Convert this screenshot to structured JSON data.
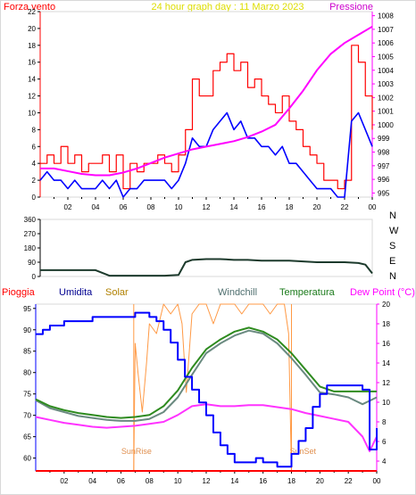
{
  "colors": {
    "background": "#ffffff",
    "frame": "#d8d8d8",
    "axis": "#000000",
    "wind_gust": "#ff0000",
    "wind_avg": "#0000ff",
    "pressure": "#ff00ff",
    "direction": "#1c3a2c",
    "rain": "#ff0000",
    "humidity": "#0000ff",
    "solar": "#ff9944",
    "windchill": "#6a8a80",
    "temperature": "#2e8b1f",
    "dew_point": "#ff33ff",
    "title": "#dddd00",
    "axis_label_top_left": "#ff0000",
    "axis_label_top_right": "#cc00cc",
    "legend_pioggia": "#ff0000",
    "legend_umidita": "#000090",
    "legend_solar": "#b08000",
    "legend_windchill": "#507070",
    "legend_temperatura": "#1a7a1a",
    "legend_dewpoint": "#ff00ff",
    "sunrise_label": "#e09050"
  },
  "chart_data": [
    {
      "type": "line",
      "title": "24 hour graph day : 11 Marzo 2023",
      "ylabel_left": "Forza vento",
      "ylabel_right": "Pressione",
      "xticks": [
        "02",
        "04",
        "06",
        "08",
        "10",
        "12",
        "14",
        "16",
        "18",
        "20",
        "22",
        "00"
      ],
      "yticks_left": [
        "0",
        "2",
        "4",
        "6",
        "8",
        "10",
        "12",
        "14",
        "16",
        "18",
        "20",
        "22"
      ],
      "yticks_right": [
        "995",
        "996",
        "997",
        "998",
        "999",
        "1000",
        "1001",
        "1002",
        "1003",
        "1004",
        "1005",
        "1006",
        "1007",
        "1008"
      ],
      "ylim_left": [
        0,
        22
      ],
      "ylim_right": [
        994.7,
        1008.3
      ],
      "series": [
        {
          "key": "gust",
          "color_key": "wind_gust",
          "x": [
            0,
            0.5,
            1,
            1.5,
            2,
            2.5,
            3,
            3.5,
            4,
            4.5,
            5,
            5.5,
            6,
            6.5,
            7,
            7.5,
            8,
            8.5,
            9,
            9.5,
            10,
            10.5,
            11,
            11.5,
            12,
            12.5,
            13,
            13.5,
            14,
            14.5,
            15,
            15.5,
            16,
            16.5,
            17,
            17.5,
            18,
            18.5,
            19,
            19.5,
            20,
            20.5,
            21,
            21.5,
            22,
            22.5,
            23,
            23.5,
            24
          ],
          "values": [
            4,
            5,
            4,
            6,
            4,
            5,
            3,
            4,
            4,
            5,
            3,
            5,
            1,
            4,
            3,
            4,
            4,
            5,
            4,
            3,
            5,
            8,
            14,
            12,
            12,
            15,
            16,
            17,
            15,
            16,
            13,
            14,
            12,
            11,
            10,
            12,
            9,
            8,
            6,
            5,
            4,
            2,
            2,
            1,
            2,
            18,
            16,
            12,
            8
          ]
        },
        {
          "key": "avg",
          "color_key": "wind_avg",
          "x": [
            0,
            0.5,
            1,
            1.5,
            2,
            2.5,
            3,
            3.5,
            4,
            4.5,
            5,
            5.5,
            6,
            6.5,
            7,
            7.5,
            8,
            8.5,
            9,
            9.5,
            10,
            10.5,
            11,
            11.5,
            12,
            12.5,
            13,
            13.5,
            14,
            14.5,
            15,
            15.5,
            16,
            16.5,
            17,
            17.5,
            18,
            18.5,
            19,
            19.5,
            20,
            20.5,
            21,
            21.5,
            22,
            22.5,
            23,
            23.5,
            24
          ],
          "values": [
            2,
            3,
            2,
            2,
            1,
            2,
            1,
            1,
            1,
            2,
            1,
            2,
            0,
            1,
            1,
            2,
            2,
            2,
            2,
            1,
            2,
            4,
            7,
            6,
            6,
            8,
            9,
            10,
            8,
            9,
            7,
            7,
            6,
            6,
            5,
            6,
            4,
            4,
            3,
            2,
            1,
            1,
            1,
            0,
            0,
            9,
            10,
            8,
            6
          ]
        },
        {
          "key": "pressure",
          "color_key": "pressure",
          "axis": "right",
          "x": [
            0,
            1,
            2,
            3,
            4,
            5,
            6,
            7,
            8,
            9,
            10,
            11,
            12,
            13,
            14,
            15,
            16,
            17,
            18,
            19,
            20,
            21,
            22,
            23,
            24
          ],
          "values": [
            996.8,
            996.8,
            996.6,
            996.4,
            996.3,
            996.3,
            996.5,
            996.8,
            997.2,
            997.6,
            997.9,
            998.2,
            998.4,
            998.6,
            998.8,
            999.1,
            999.5,
            1000.0,
            1001.2,
            1002.5,
            1004.0,
            1005.2,
            1006.0,
            1006.6,
            1007.2
          ]
        }
      ]
    },
    {
      "type": "line",
      "yticks_left": [
        "0",
        "90",
        "180",
        "270",
        "360"
      ],
      "ylim": [
        0,
        360
      ],
      "yticks_right": [
        "N",
        "W",
        "S",
        "E",
        "N"
      ],
      "series": [
        {
          "key": "direction",
          "color_key": "direction",
          "x": [
            0,
            1,
            2,
            3,
            4,
            5,
            6,
            7,
            8,
            9,
            10,
            10.5,
            11,
            12,
            13,
            14,
            15,
            16,
            17,
            18,
            19,
            20,
            21,
            22,
            23,
            23.5,
            24
          ],
          "values": [
            40,
            40,
            40,
            40,
            40,
            5,
            5,
            5,
            5,
            5,
            10,
            90,
            105,
            110,
            110,
            105,
            105,
            100,
            100,
            100,
            95,
            90,
            90,
            90,
            85,
            75,
            20
          ]
        }
      ]
    },
    {
      "type": "line",
      "xticks": [
        "02",
        "04",
        "06",
        "08",
        "10",
        "12",
        "14",
        "16",
        "18",
        "20",
        "22",
        "00"
      ],
      "yticks_left": [
        "60",
        "65",
        "70",
        "75",
        "80",
        "85",
        "90",
        "95"
      ],
      "ylim_left": [
        57,
        96
      ],
      "yticks_right": [
        "4",
        "6",
        "8",
        "10",
        "12",
        "14",
        "16",
        "18",
        "20"
      ],
      "ylim_right": [
        3,
        20
      ],
      "legend": [
        "Pioggia",
        "Umidita",
        "Solar",
        "Windchill",
        "Temperatura",
        "Dew Point (°C)"
      ],
      "annotations": [
        "SunRise",
        "SunSet"
      ],
      "series": [
        {
          "key": "humidity",
          "color_key": "humidity",
          "axis": "left",
          "x": [
            0,
            0.5,
            1,
            2,
            3,
            4,
            5,
            6,
            7,
            7.5,
            8,
            8.5,
            9,
            9.5,
            10,
            10.5,
            11,
            11.5,
            12,
            12.5,
            13,
            13.5,
            14,
            14.5,
            15,
            15.5,
            16,
            16.5,
            17,
            17.5,
            18,
            18.5,
            19,
            19.5,
            20,
            20.5,
            21,
            22,
            23,
            23.5,
            24
          ],
          "values": [
            89,
            90,
            91,
            92,
            92,
            93,
            93,
            93,
            94,
            94,
            93,
            92,
            90,
            87,
            83,
            79,
            76,
            73,
            70,
            66,
            63,
            61,
            59,
            59,
            59,
            60,
            59,
            59,
            58,
            58,
            61,
            64,
            67,
            72,
            75,
            77,
            77,
            77,
            76,
            62,
            67
          ]
        },
        {
          "key": "temperature",
          "color_key": "temperature",
          "axis": "right",
          "x": [
            0,
            1,
            2,
            3,
            4,
            5,
            6,
            7,
            8,
            9,
            10,
            11,
            12,
            13,
            14,
            15,
            16,
            17,
            18,
            19,
            20,
            21,
            22,
            23,
            24
          ],
          "values": [
            10.3,
            9.6,
            9.2,
            8.9,
            8.7,
            8.5,
            8.4,
            8.5,
            8.7,
            9.6,
            11.2,
            13.5,
            15.4,
            16.4,
            17.2,
            17.6,
            17.2,
            16.4,
            15.0,
            13.3,
            11.6,
            11.1,
            11.1,
            11.1,
            11.1
          ]
        },
        {
          "key": "windchill",
          "color_key": "windchill",
          "axis": "right",
          "x": [
            0,
            1,
            2,
            3,
            4,
            5,
            6,
            7,
            8,
            9,
            10,
            11,
            12,
            13,
            14,
            15,
            16,
            17,
            18,
            19,
            20,
            21,
            22,
            23,
            24
          ],
          "values": [
            10.2,
            9.4,
            9.0,
            8.6,
            8.4,
            8.2,
            8.1,
            8.1,
            8.3,
            9.0,
            10.5,
            12.8,
            15.0,
            16.0,
            16.8,
            17.3,
            17.0,
            16.0,
            14.5,
            12.8,
            11.0,
            10.8,
            10.5,
            9.8,
            10.5
          ]
        },
        {
          "key": "dew",
          "color_key": "dew_point",
          "axis": "right",
          "x": [
            0,
            1,
            2,
            3,
            4,
            5,
            6,
            7,
            8,
            9,
            10,
            11,
            12,
            13,
            14,
            15,
            16,
            17,
            18,
            19,
            20,
            21,
            22,
            23,
            23.5,
            24
          ],
          "values": [
            8.5,
            8.2,
            7.9,
            7.7,
            7.5,
            7.4,
            7.5,
            7.6,
            7.8,
            8.0,
            8.7,
            9.6,
            9.8,
            9.6,
            9.6,
            9.7,
            9.7,
            9.5,
            9.3,
            8.9,
            8.6,
            8.3,
            8.0,
            6.5,
            5.0,
            6.5
          ]
        },
        {
          "key": "solar",
          "color_key": "solar",
          "axis": "right",
          "x": [
            0,
            6.9,
            7.0,
            7.2,
            7.5,
            7.8,
            8.0,
            8.5,
            9.0,
            9.5,
            10.0,
            10.3,
            10.6,
            11.0,
            11.5,
            12.0,
            12.5,
            13.0,
            13.5,
            14.0,
            14.5,
            15.0,
            15.5,
            16.0,
            16.5,
            17.0,
            17.5,
            17.8,
            18.0,
            24
          ],
          "values": [
            3,
            3,
            16,
            13,
            9,
            14,
            18,
            17,
            20,
            19,
            20,
            18,
            11,
            19,
            20,
            20,
            18,
            20,
            20,
            20,
            19,
            20,
            20,
            20,
            19,
            20,
            20,
            17,
            3,
            3
          ]
        },
        {
          "key": "rain",
          "color_key": "rain",
          "axis": "left",
          "x": [
            0,
            24
          ],
          "values": [
            57,
            57
          ]
        }
      ]
    }
  ]
}
